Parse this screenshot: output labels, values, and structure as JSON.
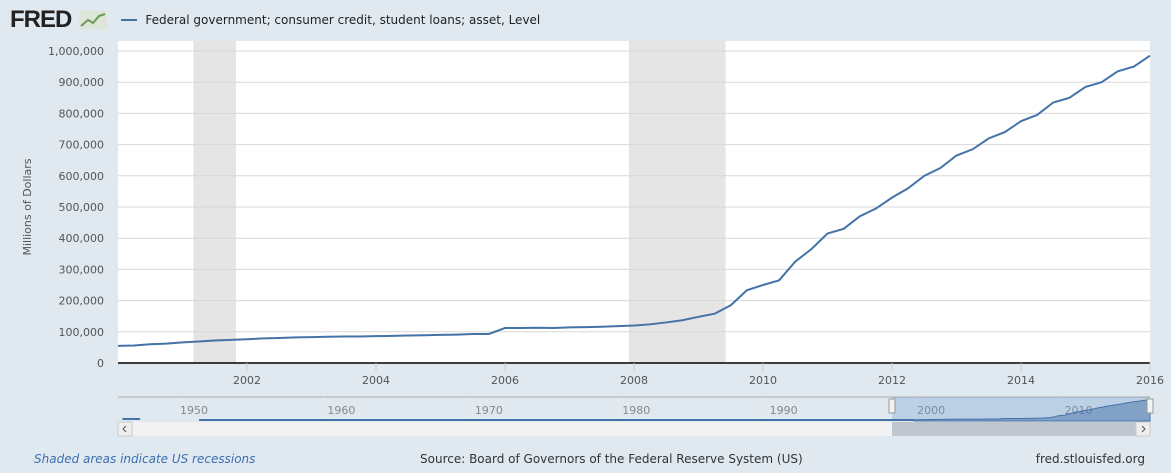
{
  "header": {
    "logo": "FRED",
    "legend_label": "Federal government; consumer credit, student loans; asset, Level"
  },
  "footer": {
    "recession_note": "Shaded areas indicate US recessions",
    "source": "Source: Board of Governors of the Federal Reserve System (US)",
    "url": "fred.stlouisfed.org"
  },
  "colors": {
    "series": "#4572a7",
    "recession": "#e5e5e5",
    "background": "#e1e9f0"
  },
  "chart_data": {
    "type": "line",
    "ylabel": "Millions of Dollars",
    "xlim": [
      2000,
      2016
    ],
    "ylim": [
      0,
      1000000
    ],
    "x_ticks": [
      "2002",
      "2004",
      "2006",
      "2008",
      "2010",
      "2012",
      "2014",
      "2016"
    ],
    "y_ticks": [
      "0",
      "100,000",
      "200,000",
      "300,000",
      "400,000",
      "500,000",
      "600,000",
      "700,000",
      "800,000",
      "900,000",
      "1,000,000"
    ],
    "grid": true,
    "legend": "top-left",
    "recessions": [
      [
        2001.17,
        2001.83
      ],
      [
        2007.92,
        2009.42
      ]
    ],
    "series": [
      {
        "name": "Federal government; consumer credit, student loans; asset, Level",
        "start": 2000,
        "step": 0.25,
        "values": [
          55000,
          56000,
          60000,
          62000,
          66000,
          69000,
          72000,
          74000,
          76000,
          79000,
          80000,
          82000,
          83000,
          84000,
          85000,
          85000,
          86000,
          87000,
          88000,
          89000,
          90000,
          91000,
          93000,
          93000,
          112000,
          112000,
          113000,
          112000,
          114000,
          115000,
          116000,
          118000,
          120000,
          124000,
          130000,
          137000,
          148000,
          158000,
          185000,
          233000,
          250000,
          265000,
          325000,
          365000,
          415000,
          430000,
          470000,
          495000,
          530000,
          560000,
          600000,
          625000,
          665000,
          685000,
          720000,
          740000,
          775000,
          795000,
          835000,
          850000,
          885000,
          900000,
          935000,
          950000,
          985000
        ]
      }
    ],
    "navigator": {
      "x_ticks": [
        "1950",
        "1960",
        "1970",
        "1980",
        "1990",
        "2000",
        "2010"
      ],
      "range": [
        1946,
        2016
      ],
      "selected": [
        1998.5,
        2016
      ]
    }
  }
}
